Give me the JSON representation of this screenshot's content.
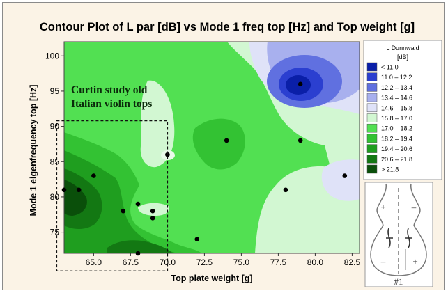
{
  "chart_data": {
    "type": "contour",
    "title": "Contour Plot of L par [dB] vs Mode 1 freq top [Hz] and Top weight [g]",
    "xlabel": "Top plate weight [g]",
    "ylabel": "Mode 1 eigenfrequency top [Hz]",
    "xlim": [
      63.0,
      83.0
    ],
    "ylim": [
      72.0,
      102.0
    ],
    "xticks": [
      "65.0",
      "67.5",
      "70.0",
      "72.5",
      "75.0",
      "77.5",
      "80.0",
      "82.5"
    ],
    "yticks": [
      "75",
      "80",
      "85",
      "90",
      "95",
      "100"
    ],
    "legend": {
      "title_line1": "L Dunnwald",
      "title_line2": "[dB]",
      "placement": "right",
      "entries": [
        {
          "label": "<  11.0",
          "color": "#0a1fa8"
        },
        {
          "label": "11.0 –  12.2",
          "color": "#2b3fd0"
        },
        {
          "label": "12.2 –  13.4",
          "color": "#6070e0"
        },
        {
          "label": "13.4 –  14.6",
          "color": "#a8b0ee"
        },
        {
          "label": "14.6 –  15.8",
          "color": "#dfe2f8"
        },
        {
          "label": "15.8 –  17.0",
          "color": "#d2f7d2"
        },
        {
          "label": "17.0 –  18.2",
          "color": "#52e052"
        },
        {
          "label": "18.2 –  19.4",
          "color": "#33c233"
        },
        {
          "label": "19.4 –  20.6",
          "color": "#1f9e1f"
        },
        {
          "label": "20.6 –  21.8",
          "color": "#137813"
        },
        {
          "label": ">  21.8",
          "color": "#0a4f0a"
        }
      ]
    },
    "points": [
      {
        "x": 63.0,
        "y": 81.0
      },
      {
        "x": 64.0,
        "y": 81.0
      },
      {
        "x": 65.0,
        "y": 83.0
      },
      {
        "x": 67.0,
        "y": 78.0
      },
      {
        "x": 68.0,
        "y": 79.0
      },
      {
        "x": 69.0,
        "y": 78.0
      },
      {
        "x": 69.0,
        "y": 77.0
      },
      {
        "x": 68.0,
        "y": 72.0
      },
      {
        "x": 70.0,
        "y": 86.0
      },
      {
        "x": 72.0,
        "y": 74.0
      },
      {
        "x": 74.0,
        "y": 88.0
      },
      {
        "x": 78.0,
        "y": 81.0
      },
      {
        "x": 79.0,
        "y": 88.0
      },
      {
        "x": 79.0,
        "y": 96.0
      },
      {
        "x": 82.0,
        "y": 83.0
      }
    ],
    "annotation": {
      "line1": "Curtin study old",
      "line2": "Italian violin tops",
      "box_x": [
        62.5,
        70.0
      ],
      "box_y": [
        69.5,
        90.8
      ]
    },
    "inset": {
      "label": "#1",
      "plus": "+",
      "minus": "–"
    }
  }
}
